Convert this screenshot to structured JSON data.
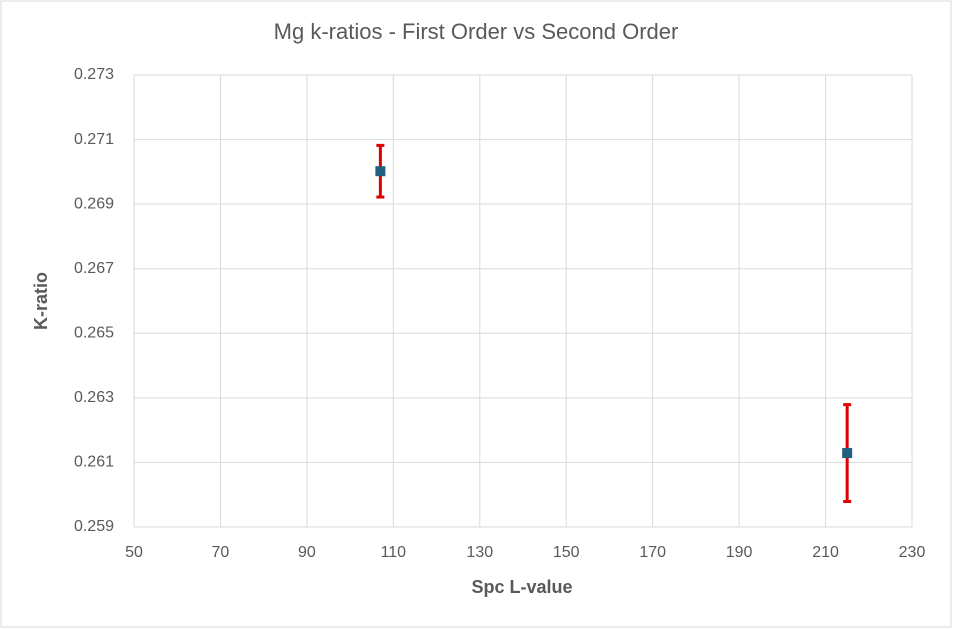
{
  "chart_data": {
    "type": "scatter",
    "title": "Mg k-ratios - First Order vs Second Order",
    "x_label": "Spc L-value",
    "y_label": "K-ratio",
    "series": [
      {
        "color": "#1f5f7f",
        "error_color": "#e00000",
        "x": [
          107,
          215
        ],
        "values": [
          0.27002,
          0.26129
        ],
        "errors": [
          0.0008,
          0.0015
        ]
      }
    ],
    "xlim": [
      50,
      230
    ],
    "xticks": [
      50,
      70,
      90,
      110,
      130,
      150,
      170,
      190,
      210,
      230
    ],
    "ylim": [
      0.259,
      0.273
    ],
    "yticks": [
      0.259,
      0.261,
      0.263,
      0.265,
      0.267,
      0.269,
      0.271,
      0.273
    ],
    "grid": true
  }
}
